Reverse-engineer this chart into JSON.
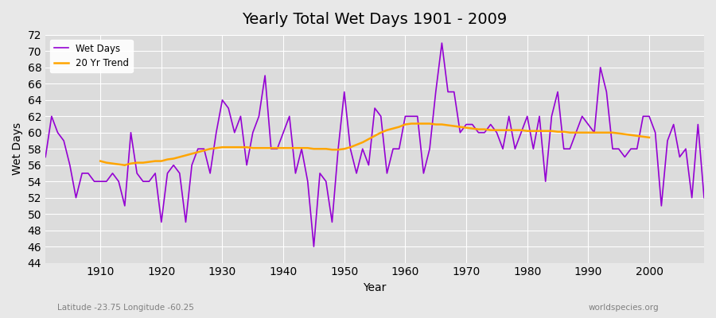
{
  "title": "Yearly Total Wet Days 1901 - 2009",
  "xlabel": "Year",
  "ylabel": "Wet Days",
  "legend_wet": "Wet Days",
  "legend_trend": "20 Yr Trend",
  "subtitle": "Latitude -23.75 Longitude -60.25",
  "watermark": "worldspecies.org",
  "ylim": [
    44,
    72
  ],
  "yticks": [
    44,
    46,
    48,
    50,
    52,
    54,
    56,
    58,
    60,
    62,
    64,
    66,
    68,
    70,
    72
  ],
  "line_color": "#9400D3",
  "trend_color": "#FFA500",
  "bg_color": "#E8E8E8",
  "plot_bg": "#DCDCDC",
  "years": [
    1901,
    1902,
    1903,
    1904,
    1905,
    1906,
    1907,
    1908,
    1909,
    1910,
    1911,
    1912,
    1913,
    1914,
    1915,
    1916,
    1917,
    1918,
    1919,
    1920,
    1921,
    1922,
    1923,
    1924,
    1925,
    1926,
    1927,
    1928,
    1929,
    1930,
    1931,
    1932,
    1933,
    1934,
    1935,
    1936,
    1937,
    1938,
    1939,
    1940,
    1941,
    1942,
    1943,
    1944,
    1945,
    1946,
    1947,
    1948,
    1949,
    1950,
    1951,
    1952,
    1953,
    1954,
    1955,
    1956,
    1957,
    1958,
    1959,
    1960,
    1961,
    1962,
    1963,
    1964,
    1965,
    1966,
    1967,
    1968,
    1969,
    1970,
    1971,
    1972,
    1973,
    1974,
    1975,
    1976,
    1977,
    1978,
    1979,
    1980,
    1981,
    1982,
    1983,
    1984,
    1985,
    1986,
    1987,
    1988,
    1989,
    1990,
    1991,
    1992,
    1993,
    1994,
    1995,
    1996,
    1997,
    1998,
    1999,
    2000,
    2001,
    2002,
    2003,
    2004,
    2005,
    2006,
    2007,
    2008,
    2009
  ],
  "wet_days": [
    57,
    62,
    60,
    59,
    56,
    52,
    55,
    55,
    54,
    54,
    54,
    55,
    54,
    51,
    60,
    55,
    54,
    54,
    55,
    49,
    55,
    56,
    55,
    49,
    56,
    58,
    58,
    55,
    60,
    64,
    63,
    60,
    62,
    56,
    60,
    62,
    67,
    58,
    58,
    60,
    62,
    55,
    58,
    54,
    46,
    55,
    54,
    49,
    58,
    65,
    58,
    55,
    58,
    56,
    63,
    62,
    55,
    58,
    58,
    62,
    62,
    62,
    55,
    58,
    65,
    71,
    65,
    65,
    60,
    61,
    61,
    60,
    60,
    61,
    60,
    58,
    62,
    58,
    60,
    62,
    58,
    62,
    54,
    62,
    65,
    58,
    58,
    60,
    62,
    61,
    60,
    68,
    65,
    58,
    58,
    57,
    58,
    58,
    62,
    62,
    60,
    51,
    59,
    61,
    57,
    58,
    52,
    61,
    52
  ],
  "trend_years": [
    1910,
    1911,
    1912,
    1913,
    1914,
    1915,
    1916,
    1917,
    1918,
    1919,
    1920,
    1921,
    1922,
    1923,
    1924,
    1925,
    1926,
    1927,
    1928,
    1929,
    1930,
    1931,
    1932,
    1933,
    1934,
    1935,
    1936,
    1937,
    1938,
    1939,
    1940,
    1941,
    1942,
    1943,
    1944,
    1945,
    1946,
    1947,
    1948,
    1949,
    1950,
    1951,
    1952,
    1953,
    1954,
    1955,
    1956,
    1957,
    1958,
    1959,
    1960,
    1961,
    1962,
    1963,
    1964,
    1965,
    1966,
    1967,
    1968,
    1969,
    1970,
    1971,
    1972,
    1973,
    1974,
    1975,
    1976,
    1977,
    1978,
    1979,
    1980,
    1981,
    1982,
    1983,
    1984,
    1985,
    1986,
    1987,
    1988,
    1989,
    1990,
    1991,
    1992,
    1993,
    1994,
    1995,
    1996,
    1997,
    1998,
    1999,
    2000
  ],
  "trend_values": [
    56.5,
    56.3,
    56.2,
    56.1,
    56.0,
    56.2,
    56.3,
    56.3,
    56.4,
    56.5,
    56.5,
    56.7,
    56.8,
    57.0,
    57.2,
    57.4,
    57.6,
    57.8,
    58.0,
    58.1,
    58.2,
    58.2,
    58.2,
    58.2,
    58.2,
    58.1,
    58.1,
    58.1,
    58.1,
    58.1,
    58.1,
    58.1,
    58.1,
    58.1,
    58.1,
    58.0,
    58.0,
    58.0,
    57.9,
    57.9,
    58.0,
    58.2,
    58.5,
    58.8,
    59.2,
    59.6,
    60.0,
    60.3,
    60.5,
    60.7,
    61.0,
    61.1,
    61.1,
    61.1,
    61.1,
    61.0,
    61.0,
    60.9,
    60.8,
    60.7,
    60.6,
    60.5,
    60.4,
    60.4,
    60.3,
    60.3,
    60.3,
    60.3,
    60.3,
    60.3,
    60.2,
    60.2,
    60.2,
    60.2,
    60.2,
    60.1,
    60.1,
    60.0,
    60.0,
    60.0,
    60.0,
    60.0,
    60.0,
    60.0,
    60.0,
    59.9,
    59.8,
    59.7,
    59.6,
    59.5,
    59.4
  ],
  "xtick_positions": [
    1910,
    1920,
    1930,
    1940,
    1950,
    1960,
    1970,
    1980,
    1990,
    2000
  ]
}
